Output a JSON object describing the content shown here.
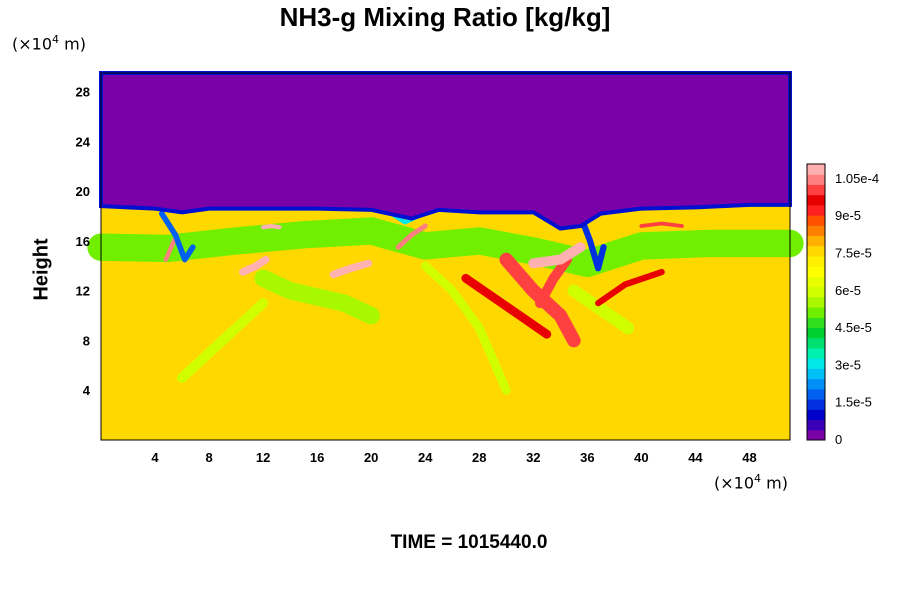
{
  "chart_data": {
    "type": "heatmap",
    "title": "NH3-g Mixing Ratio [kg/kg]",
    "ylabel": "Height",
    "x_unit": {
      "prefix": "(×10",
      "exp": "4",
      "suffix": " m)"
    },
    "y_unit": {
      "prefix": "(×10",
      "exp": "4",
      "suffix": " m)"
    },
    "xlim": [
      0,
      51
    ],
    "ylim": [
      0,
      29.5
    ],
    "x_ticks": [
      {
        "value": 4,
        "label": "4"
      },
      {
        "value": 8,
        "label": "8"
      },
      {
        "value": 12,
        "label": "12"
      },
      {
        "value": 16,
        "label": "16"
      },
      {
        "value": 20,
        "label": "20"
      },
      {
        "value": 24,
        "label": "24"
      },
      {
        "value": 28,
        "label": "28"
      },
      {
        "value": 32,
        "label": "32"
      },
      {
        "value": 36,
        "label": "36"
      },
      {
        "value": 40,
        "label": "40"
      },
      {
        "value": 44,
        "label": "44"
      },
      {
        "value": 48,
        "label": "48"
      }
    ],
    "y_ticks": [
      {
        "value": 4,
        "label": "4"
      },
      {
        "value": 8,
        "label": "8"
      },
      {
        "value": 12,
        "label": "12"
      },
      {
        "value": 16,
        "label": "16"
      },
      {
        "value": 20,
        "label": "20"
      },
      {
        "value": 24,
        "label": "24"
      },
      {
        "value": 28,
        "label": "28"
      }
    ],
    "colorbar": {
      "min": 0,
      "max": 0.000111,
      "colors": [
        "#7a00a8",
        "#3a00b8",
        "#0000c8",
        "#0030e0",
        "#0060f0",
        "#0090f8",
        "#00c0f8",
        "#00e8e8",
        "#00f0b0",
        "#00e070",
        "#00d030",
        "#30e020",
        "#70f000",
        "#a8f800",
        "#d0ff00",
        "#e8ff00",
        "#ffff00",
        "#fff000",
        "#ffd800",
        "#ffb000",
        "#ff8000",
        "#ff5000",
        "#ff2020",
        "#e80000",
        "#ff4040",
        "#ff8080",
        "#ffb0b0"
      ],
      "tick_labels": [
        {
          "value": 0,
          "label": "0"
        },
        {
          "value": 1.5e-05,
          "label": "1.5e-5"
        },
        {
          "value": 3e-05,
          "label": "3e-5"
        },
        {
          "value": 4.5e-05,
          "label": "4.5e-5"
        },
        {
          "value": 6e-05,
          "label": "6e-5"
        },
        {
          "value": 7.5e-05,
          "label": "7.5e-5"
        },
        {
          "value": 9e-05,
          "label": "9e-5"
        },
        {
          "value": 0.000105,
          "label": "1.05e-4"
        }
      ]
    },
    "background_field": {
      "lower_value": 7.8e-05,
      "upper_value": 0.0,
      "boundary_height_x": [
        0,
        4,
        6,
        8,
        12,
        16,
        20,
        23,
        25,
        28,
        32,
        34,
        35.5,
        37,
        40,
        44,
        48,
        51
      ],
      "boundary_height_y": [
        18.8,
        18.6,
        18.3,
        18.6,
        18.6,
        18.6,
        18.5,
        17.8,
        18.5,
        18.3,
        18.3,
        17.0,
        17.2,
        18.2,
        18.6,
        18.7,
        18.9,
        18.9
      ]
    },
    "features": [
      {
        "kind": "mid",
        "x": [
          0,
          5,
          10,
          15,
          20,
          24,
          28,
          32,
          36,
          40,
          45,
          51
        ],
        "y": [
          15.5,
          15.4,
          16.0,
          16.5,
          16.8,
          15.6,
          16.0,
          15.2,
          14.2,
          15.6,
          15.8,
          15.8
        ],
        "w": 2.2,
        "value": 5e-05
      },
      {
        "kind": "mid",
        "x": [
          12,
          14,
          16,
          18,
          20
        ],
        "y": [
          13,
          12,
          11.5,
          11,
          10
        ],
        "w": 1.4,
        "value": 5.5e-05
      },
      {
        "kind": "mid",
        "x": [
          6,
          9,
          12
        ],
        "y": [
          5,
          8,
          11
        ],
        "w": 0.8,
        "value": 5.8e-05
      },
      {
        "kind": "mid",
        "x": [
          24,
          26,
          28,
          30
        ],
        "y": [
          14,
          12,
          9,
          4
        ],
        "w": 0.7,
        "value": 6e-05
      },
      {
        "kind": "mid",
        "x": [
          35,
          37,
          39
        ],
        "y": [
          12,
          10.5,
          9
        ],
        "w": 1.0,
        "value": 5.8e-05
      },
      {
        "kind": "high",
        "x": [
          30,
          32,
          34,
          35
        ],
        "y": [
          14.5,
          12,
          10,
          8
        ],
        "w": 1.1,
        "value": 0.0001
      },
      {
        "kind": "high",
        "x": [
          27,
          29,
          31,
          33
        ],
        "y": [
          13,
          11.5,
          10,
          8.5
        ],
        "w": 0.7,
        "value": 9.5e-05
      },
      {
        "kind": "high",
        "x": [
          32.5,
          33.5,
          34.5
        ],
        "y": [
          11,
          13,
          14.5
        ],
        "w": 0.8,
        "value": 0.0001
      },
      {
        "kind": "high",
        "x": [
          36.8,
          38.8,
          41.5
        ],
        "y": [
          11,
          12.5,
          13.5
        ],
        "w": 0.5,
        "value": 9.5e-05
      },
      {
        "kind": "high",
        "x": [
          32,
          34,
          35.5
        ],
        "y": [
          14.2,
          14.5,
          15.5
        ],
        "w": 0.8,
        "value": 0.00011
      },
      {
        "kind": "high",
        "x": [
          17.2,
          18.5,
          19.8
        ],
        "y": [
          13.3,
          13.8,
          14.2
        ],
        "w": 0.6,
        "value": 0.000108
      },
      {
        "kind": "high",
        "x": [
          10.5,
          11.5,
          12.2
        ],
        "y": [
          13.5,
          14,
          14.5
        ],
        "w": 0.6,
        "value": 0.000108
      },
      {
        "kind": "high",
        "x": [
          22,
          23,
          24
        ],
        "y": [
          15.5,
          16.5,
          17.2
        ],
        "w": 0.4,
        "value": 0.000105
      },
      {
        "kind": "high",
        "x": [
          12,
          12.6,
          13.2
        ],
        "y": [
          17.1,
          17.2,
          17.1
        ],
        "w": 0.35,
        "value": 0.000108
      },
      {
        "kind": "high",
        "x": [
          40,
          41.5,
          43
        ],
        "y": [
          17.2,
          17.4,
          17.2
        ],
        "w": 0.3,
        "value": 0.0001
      },
      {
        "kind": "high",
        "x": [
          4.8,
          5.2,
          5.6
        ],
        "y": [
          14.5,
          15.5,
          16.5
        ],
        "w": 0.35,
        "value": 0.000105
      },
      {
        "kind": "low",
        "x": [
          4.5,
          5.5,
          6.2,
          6.8
        ],
        "y": [
          18.2,
          16.5,
          14.5,
          15.5
        ],
        "w": 0.45,
        "value": 2e-05
      },
      {
        "kind": "low",
        "x": [
          35.5,
          36.2,
          36.8,
          37.2
        ],
        "y": [
          18.0,
          16.0,
          13.8,
          15.5
        ],
        "w": 0.5,
        "value": 1.5e-05
      },
      {
        "kind": "low",
        "x": [
          21.5,
          22.5,
          23.5
        ],
        "y": [
          18.2,
          17.5,
          18.0
        ],
        "w": 0.35,
        "value": 3e-05
      }
    ],
    "time_label": "TIME = 1015440.0"
  }
}
